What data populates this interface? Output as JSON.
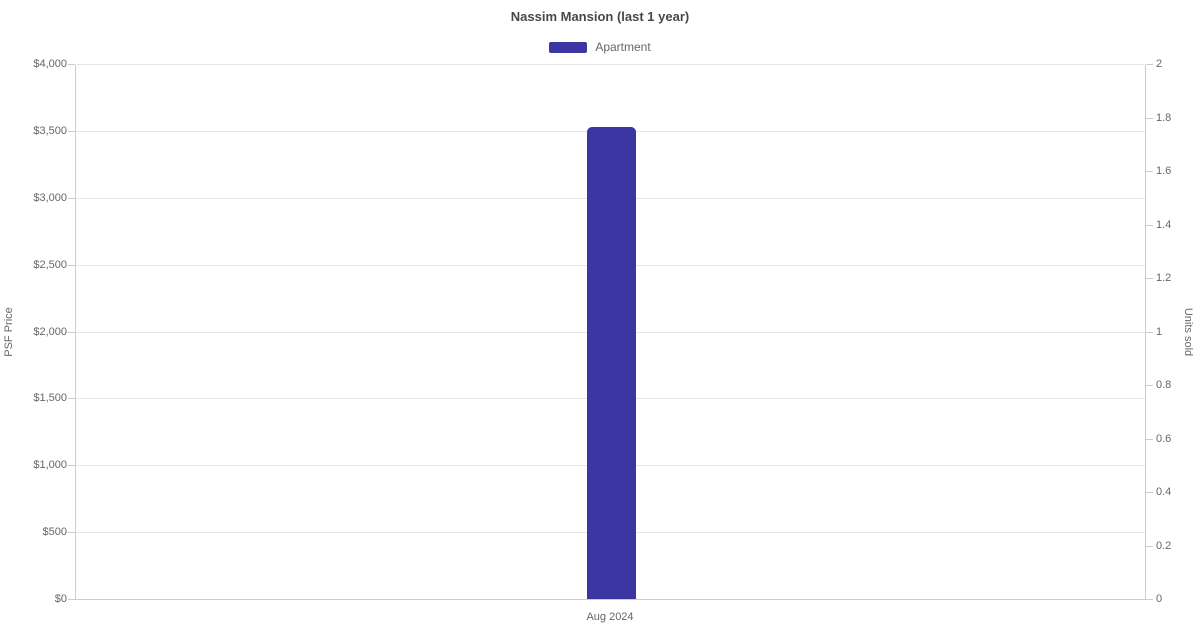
{
  "chart_data": {
    "type": "bar",
    "title": "Nassim Mansion (last 1 year)",
    "legend_position": "top",
    "legend": [
      {
        "label": "Apartment",
        "color": "#3b36a2"
      }
    ],
    "categories": [
      "Aug 2024"
    ],
    "series": [
      {
        "name": "Apartment",
        "yaxis": "left",
        "values": [
          3530
        ],
        "color": "#3b36a2"
      }
    ],
    "axes": {
      "left": {
        "title": "PSF Price",
        "min": 0,
        "max": 4000,
        "tick_step": 500,
        "tick_labels": [
          "$0",
          "$500",
          "$1,000",
          "$1,500",
          "$2,000",
          "$2,500",
          "$3,000",
          "$3,500",
          "$4,000"
        ]
      },
      "right": {
        "title": "Units sold",
        "min": 0,
        "max": 2,
        "tick_step": 0.2,
        "tick_labels": [
          "0",
          "0.2",
          "0.4",
          "0.6",
          "0.8",
          "1",
          "1.2",
          "1.4",
          "1.6",
          "1.8",
          "2"
        ]
      }
    },
    "grid": true,
    "colors": {
      "grid_line": "#e6e6e6",
      "axis_line": "#cccccc",
      "tick_text": "#666666",
      "title_text": "#484848",
      "background": "#ffffff"
    }
  }
}
